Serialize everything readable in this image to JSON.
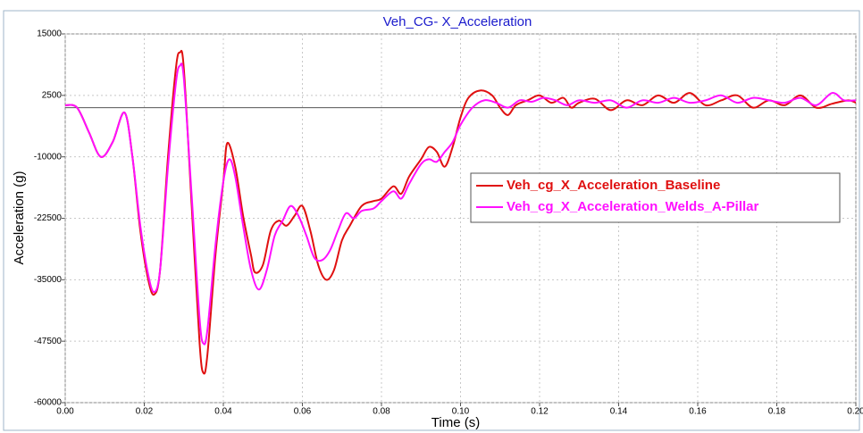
{
  "chart_data": {
    "type": "line",
    "title": "Veh_CG- X_Acceleration",
    "xlabel": "Time (s)",
    "ylabel": "Acceleration (g)",
    "xlim": [
      0,
      0.2
    ],
    "ylim": [
      -60000,
      15000
    ],
    "xticks": [
      {
        "value": 0,
        "label": "0.00"
      },
      {
        "value": 0.02,
        "label": "0.02"
      },
      {
        "value": 0.04,
        "label": "0.04"
      },
      {
        "value": 0.06,
        "label": "0.06"
      },
      {
        "value": 0.08,
        "label": "0.08"
      },
      {
        "value": 0.1,
        "label": "0.10"
      },
      {
        "value": 0.12,
        "label": "0.12"
      },
      {
        "value": 0.14,
        "label": "0.14"
      },
      {
        "value": 0.16,
        "label": "0.16"
      },
      {
        "value": 0.18,
        "label": "0.18"
      },
      {
        "value": 0.2,
        "label": "0.20"
      }
    ],
    "yticks": [
      15000,
      2500,
      -10000,
      -22500,
      -35000,
      -47500,
      -60000
    ],
    "grid": true,
    "hline": 0,
    "legend": "center right",
    "series": [
      {
        "name": "Veh_cg_X_Acceleration_Baseline",
        "color": "#e01010",
        "x": [
          0,
          0.003,
          0.006,
          0.009,
          0.012,
          0.015,
          0.017,
          0.019,
          0.021,
          0.0225,
          0.024,
          0.026,
          0.028,
          0.029,
          0.03,
          0.032,
          0.034,
          0.035,
          0.036,
          0.038,
          0.04,
          0.041,
          0.043,
          0.045,
          0.047,
          0.048,
          0.05,
          0.052,
          0.054,
          0.056,
          0.058,
          0.06,
          0.062,
          0.064,
          0.066,
          0.068,
          0.07,
          0.072,
          0.075,
          0.078,
          0.08,
          0.083,
          0.085,
          0.087,
          0.09,
          0.092,
          0.094,
          0.096,
          0.098,
          0.1,
          0.102,
          0.105,
          0.108,
          0.11,
          0.112,
          0.114,
          0.117,
          0.12,
          0.123,
          0.126,
          0.128,
          0.13,
          0.134,
          0.138,
          0.142,
          0.146,
          0.15,
          0.154,
          0.158,
          0.162,
          0.166,
          0.17,
          0.174,
          0.178,
          0.182,
          0.186,
          0.19,
          0.194,
          0.198,
          0.2
        ],
        "values": [
          500,
          0,
          -5000,
          -10000,
          -7000,
          -1000,
          -10000,
          -25000,
          -35000,
          -38000,
          -33000,
          -10000,
          8000,
          11200,
          8000,
          -20000,
          -48000,
          -54000,
          -50000,
          -30000,
          -15000,
          -7200,
          -12000,
          -22000,
          -30000,
          -33500,
          -32000,
          -25000,
          -23000,
          -24000,
          -22000,
          -20000,
          -25000,
          -32000,
          -35000,
          -33000,
          -27000,
          -24000,
          -20000,
          -19000,
          -18500,
          -16000,
          -17500,
          -14000,
          -10500,
          -8000,
          -9000,
          -12000,
          -8000,
          -2000,
          2000,
          3500,
          2500,
          0,
          -1500,
          500,
          1500,
          2500,
          1000,
          2000,
          0,
          1000,
          1800,
          -500,
          1500,
          500,
          2500,
          1000,
          3000,
          500,
          1500,
          2500,
          0,
          1500,
          500,
          2500,
          0,
          800,
          1500,
          1000
        ]
      },
      {
        "name": "Veh_cg_X_Acceleration_Welds_A-Pillar",
        "color": "#ff10ff",
        "x": [
          0,
          0.003,
          0.006,
          0.009,
          0.012,
          0.015,
          0.017,
          0.019,
          0.021,
          0.0225,
          0.024,
          0.026,
          0.028,
          0.029,
          0.03,
          0.032,
          0.034,
          0.035,
          0.036,
          0.038,
          0.04,
          0.0415,
          0.043,
          0.045,
          0.047,
          0.049,
          0.051,
          0.053,
          0.055,
          0.057,
          0.059,
          0.061,
          0.063,
          0.065,
          0.067,
          0.069,
          0.071,
          0.073,
          0.075,
          0.078,
          0.08,
          0.083,
          0.085,
          0.087,
          0.09,
          0.092,
          0.094,
          0.096,
          0.098,
          0.1,
          0.103,
          0.106,
          0.109,
          0.112,
          0.115,
          0.118,
          0.121,
          0.124,
          0.127,
          0.13,
          0.134,
          0.138,
          0.142,
          0.146,
          0.15,
          0.154,
          0.158,
          0.162,
          0.166,
          0.17,
          0.174,
          0.178,
          0.182,
          0.186,
          0.19,
          0.194,
          0.197,
          0.2
        ],
        "values": [
          500,
          0,
          -5000,
          -10000,
          -7000,
          -1000,
          -10000,
          -24000,
          -34000,
          -37500,
          -33000,
          -12000,
          5000,
          8500,
          6000,
          -18000,
          -43000,
          -48000,
          -45000,
          -28000,
          -15000,
          -10500,
          -14000,
          -24000,
          -33000,
          -37000,
          -33000,
          -26000,
          -23000,
          -20000,
          -22000,
          -26000,
          -30500,
          -31000,
          -29000,
          -25000,
          -21500,
          -22500,
          -21000,
          -20500,
          -19000,
          -17000,
          -18500,
          -15500,
          -11500,
          -10500,
          -11000,
          -9000,
          -7000,
          -3500,
          0,
          1500,
          1000,
          0,
          1500,
          1200,
          2000,
          1500,
          500,
          1500,
          1000,
          1500,
          0,
          1500,
          1000,
          2000,
          1000,
          1500,
          2500,
          1000,
          2000,
          1500,
          1000,
          2000,
          500,
          3000,
          1500,
          1500
        ]
      }
    ]
  }
}
